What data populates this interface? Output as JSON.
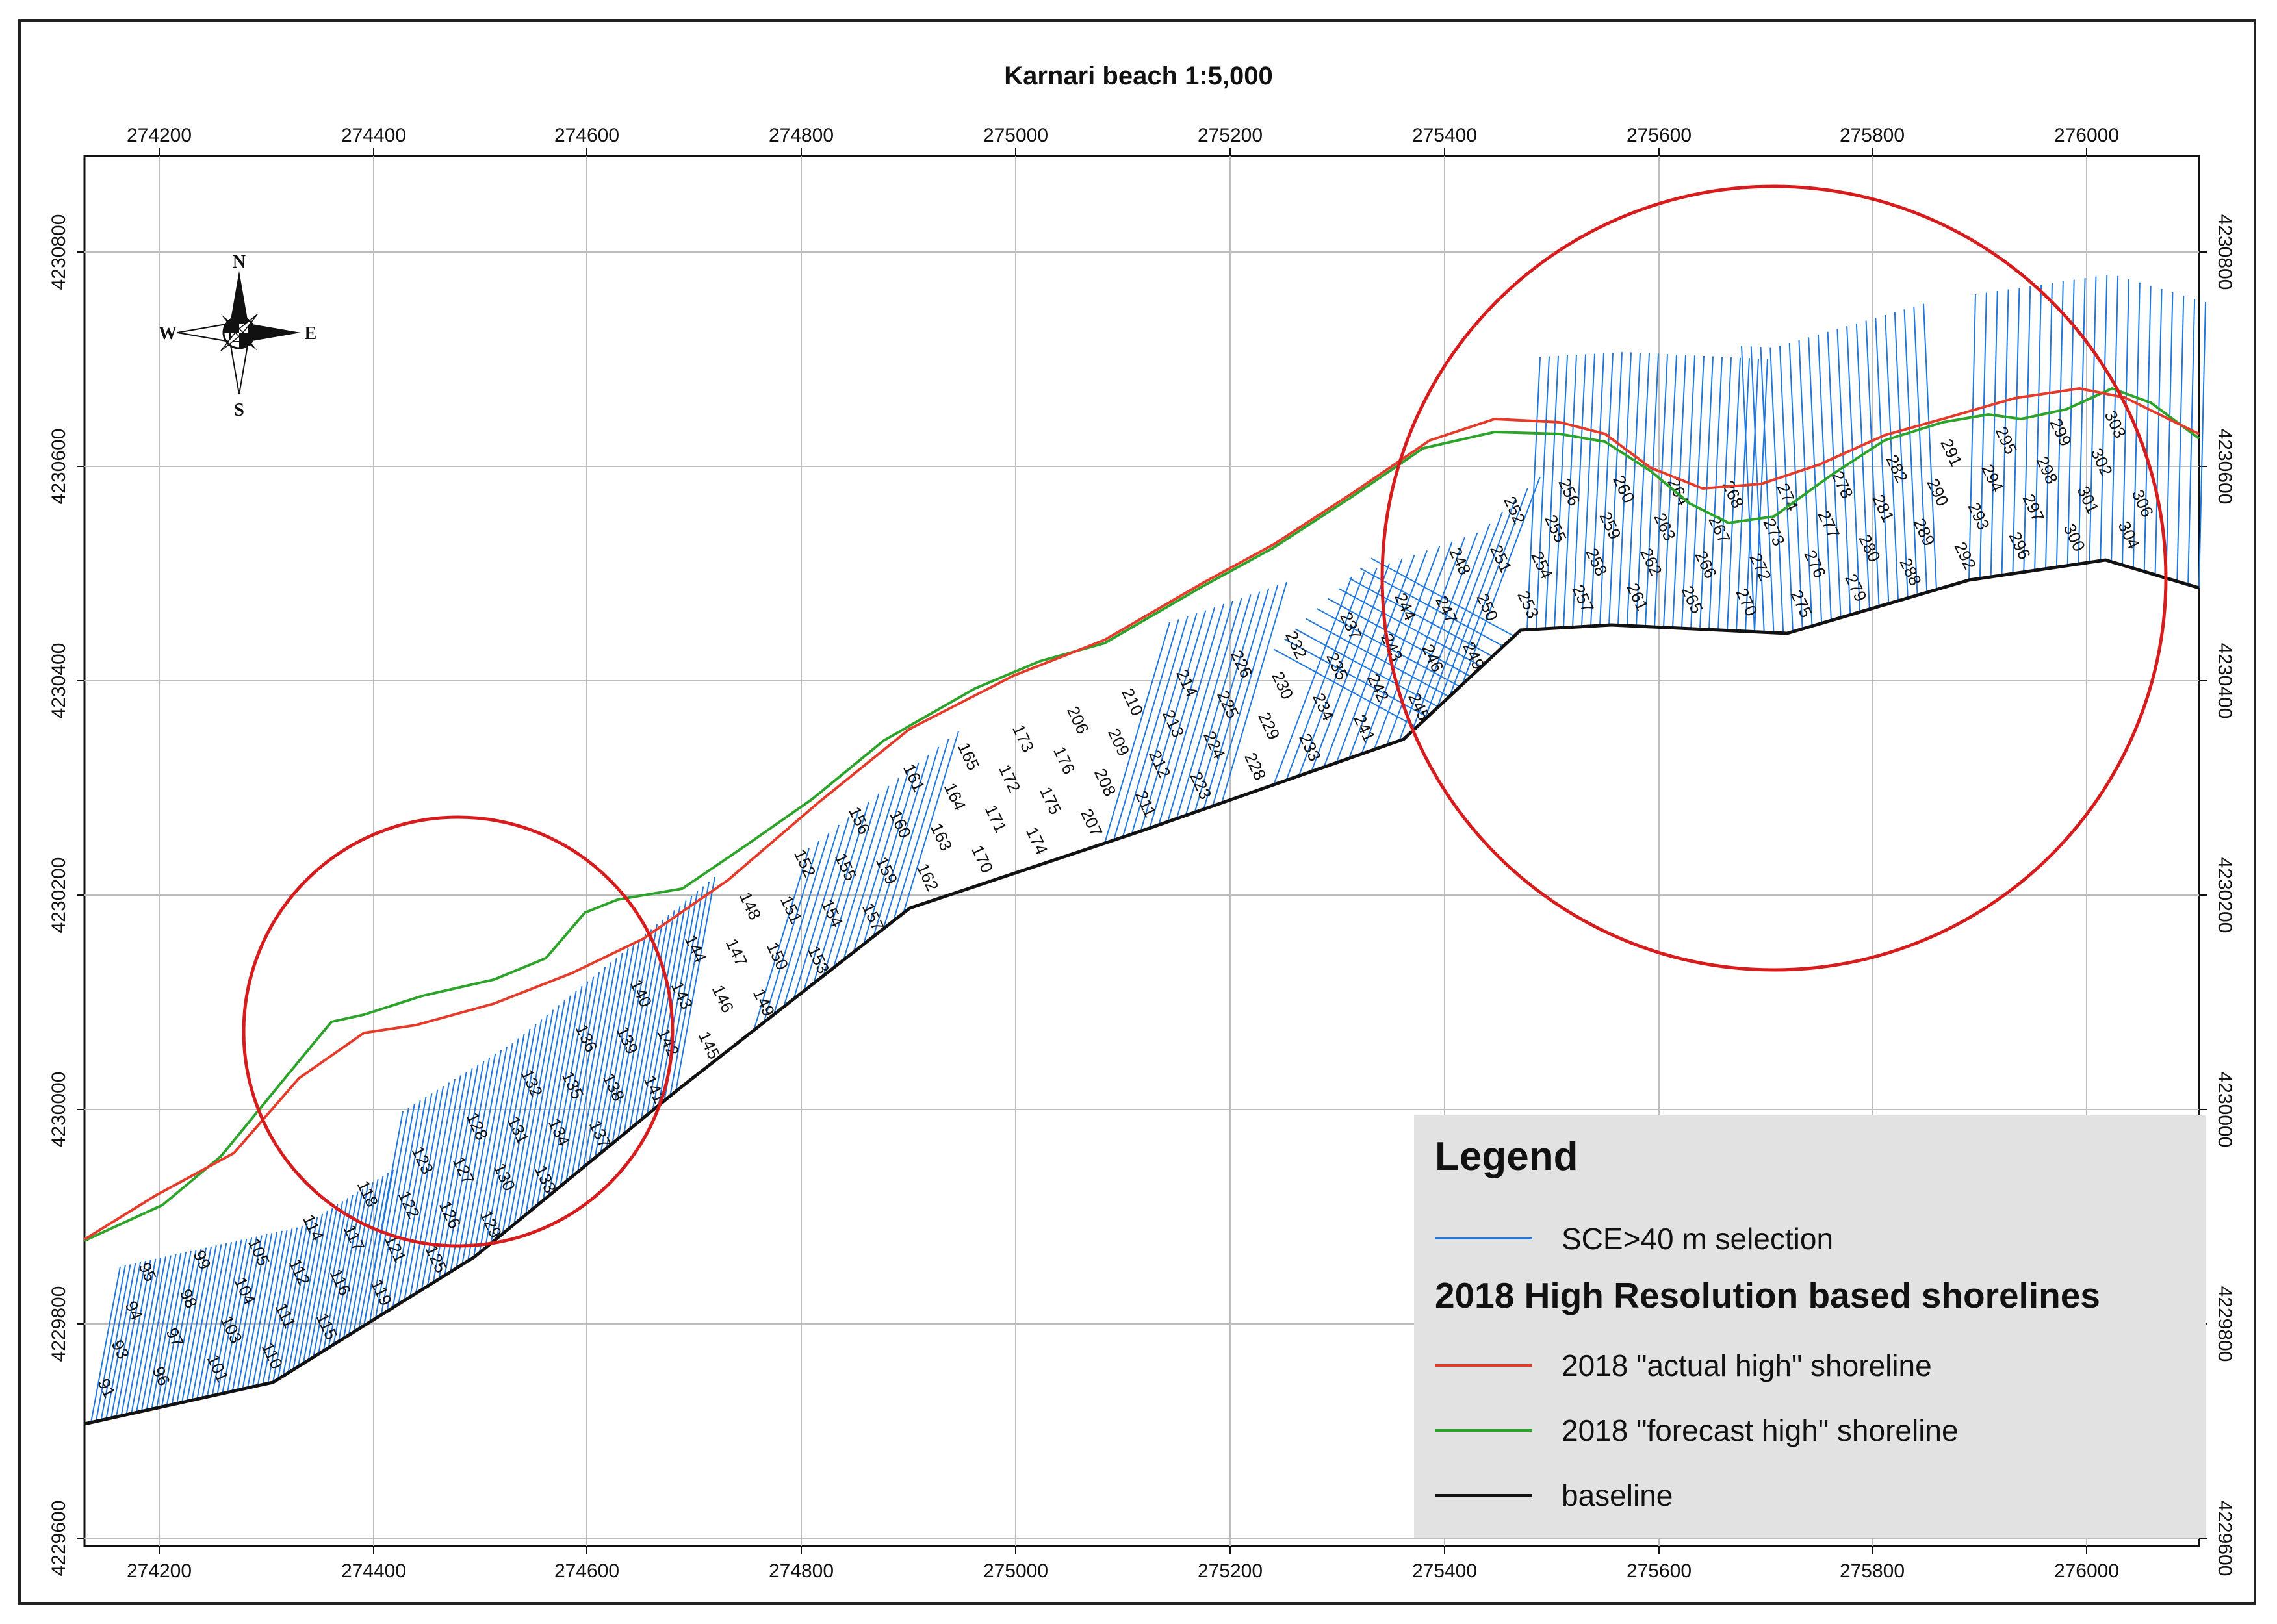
{
  "title": "Karnari beach  1:5,000",
  "x_ticks": [
    "274200",
    "274400",
    "274600",
    "274800",
    "275000",
    "275200",
    "275400",
    "275600",
    "275800",
    "276000"
  ],
  "y_ticks": [
    "4230800",
    "4230600",
    "4230400",
    "4230200",
    "4230000",
    "4229800",
    "4229600"
  ],
  "compass": {
    "n": "N",
    "s": "S",
    "e": "E",
    "w": "W",
    "icon": "north-arrow-icon"
  },
  "legend": {
    "title": "Legend",
    "items_top": [
      {
        "label": "SCE>40 m selection",
        "color": "#1f78e0"
      }
    ],
    "subtitle": "2018 High Resolution based shorelines",
    "items": [
      {
        "label": "2018 \"actual high\" shoreline",
        "color": "#e53b2a"
      },
      {
        "label": "2018 \"forecast high\" shoreline",
        "color": "#2ea32b"
      },
      {
        "label": "baseline",
        "color": "#111111"
      }
    ]
  },
  "colors": {
    "transect": "#1f78e0",
    "actual_high": "#e53b2a",
    "forecast_high": "#2ea32b",
    "baseline": "#111111",
    "highlight_circle": "#d61c1c",
    "grid": "#b8b8b8"
  },
  "transect_labels": [
    "91",
    "93",
    "94",
    "95",
    "96",
    "97",
    "98",
    "99",
    "101",
    "103",
    "104",
    "105",
    "110",
    "111",
    "112",
    "114",
    "115",
    "116",
    "117",
    "118",
    "119",
    "121",
    "122",
    "123",
    "125",
    "126",
    "127",
    "128",
    "129",
    "130",
    "131",
    "132",
    "133",
    "134",
    "135",
    "136",
    "137",
    "138",
    "139",
    "140",
    "141",
    "142",
    "143",
    "144",
    "145",
    "146",
    "147",
    "148",
    "149",
    "150",
    "151",
    "152",
    "153",
    "154",
    "155",
    "156",
    "157",
    "159",
    "160",
    "161",
    "162",
    "163",
    "164",
    "165",
    "170",
    "171",
    "172",
    "173",
    "174",
    "175",
    "176",
    "206",
    "207",
    "208",
    "209",
    "210",
    "211",
    "212",
    "213",
    "214",
    "223",
    "224",
    "225",
    "226",
    "228",
    "229",
    "230",
    "232",
    "233",
    "234",
    "235",
    "237",
    "241",
    "242",
    "243",
    "244",
    "245",
    "246",
    "247",
    "248",
    "249",
    "250",
    "251",
    "252",
    "253",
    "254",
    "255",
    "256",
    "257",
    "258",
    "259",
    "260",
    "261",
    "262",
    "263",
    "264",
    "265",
    "266",
    "267",
    "268",
    "270",
    "272",
    "273",
    "274",
    "275",
    "276",
    "277",
    "278",
    "279",
    "280",
    "281",
    "282",
    "288",
    "289",
    "290",
    "291",
    "292",
    "293",
    "294",
    "295",
    "296",
    "297",
    "298",
    "299",
    "300",
    "301",
    "302",
    "303",
    "304",
    "306"
  ]
}
